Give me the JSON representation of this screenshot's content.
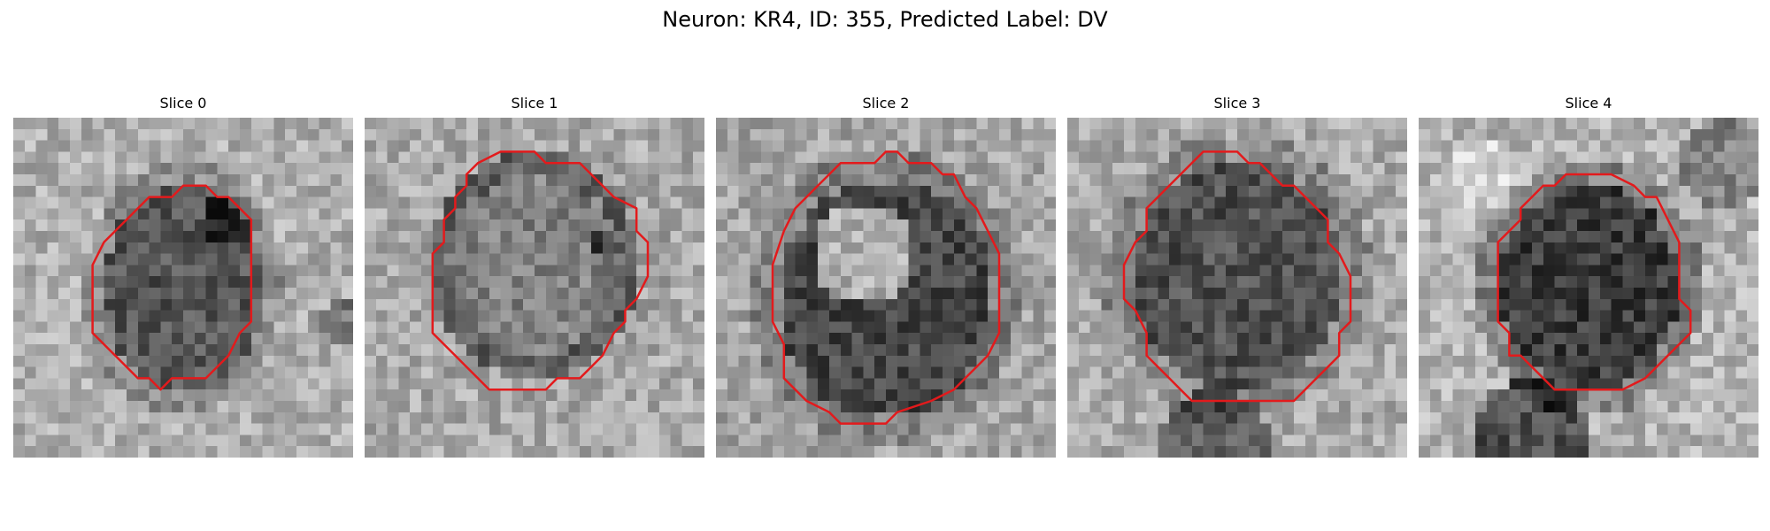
{
  "figure": {
    "title": "Neuron: KR4, ID: 355, Predicted Label: DV"
  },
  "panels": [
    {
      "title": "Slice 0",
      "blob": "soma-dark-right",
      "outline_color": "#e31a1c"
    },
    {
      "title": "Slice 1",
      "blob": "soma-light-ring",
      "outline_color": "#e31a1c"
    },
    {
      "title": "Slice 2",
      "blob": "soma-dark-bottom",
      "outline_color": "#e31a1c"
    },
    {
      "title": "Slice 3",
      "blob": "soma-dark-full",
      "outline_color": "#e31a1c"
    },
    {
      "title": "Slice 4",
      "blob": "soma-dark-with-lower-body",
      "outline_color": "#e31a1c"
    }
  ],
  "colors": {
    "outline": "#e31a1c",
    "colormap": "grayscale"
  }
}
